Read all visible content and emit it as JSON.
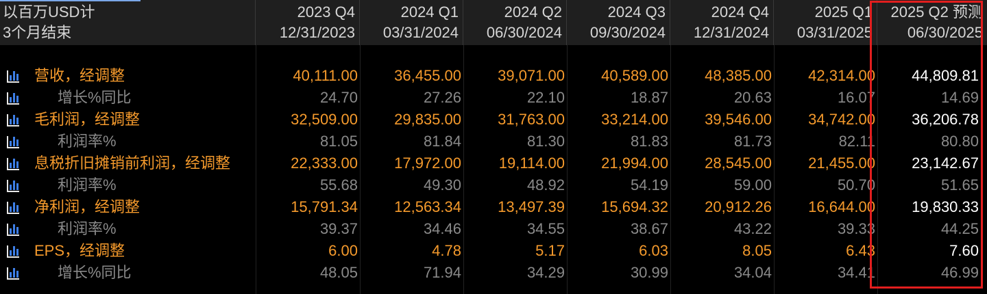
{
  "header": {
    "label_line1": "以百万USD计",
    "label_line2": "3个月结束",
    "periods": [
      {
        "quarter": "2023 Q4",
        "date": "12/31/2023"
      },
      {
        "quarter": "2024 Q1",
        "date": "03/31/2024"
      },
      {
        "quarter": "2024 Q2",
        "date": "06/30/2024"
      },
      {
        "quarter": "2024 Q3",
        "date": "09/30/2024"
      },
      {
        "quarter": "2024 Q4",
        "date": "12/31/2024"
      },
      {
        "quarter": "2025 Q1",
        "date": "03/31/2025"
      },
      {
        "quarter": "2025 Q2 预测",
        "date": "06/30/2025"
      }
    ]
  },
  "rows": [
    {
      "label": "营收，经调整",
      "type": "main",
      "icon": "chart-icon",
      "values": [
        "40,111.00",
        "36,455.00",
        "39,071.00",
        "40,589.00",
        "48,385.00",
        "42,314.00",
        "44,809.81"
      ]
    },
    {
      "label": "增长%同比",
      "type": "sub",
      "icon": "chart-icon",
      "values": [
        "24.70",
        "27.26",
        "22.10",
        "18.87",
        "20.63",
        "16.07",
        "14.69"
      ]
    },
    {
      "label": "毛利润，经调整",
      "type": "main",
      "icon": "chart-icon",
      "values": [
        "32,509.00",
        "29,835.00",
        "31,763.00",
        "33,214.00",
        "39,546.00",
        "34,742.00",
        "36,206.78"
      ]
    },
    {
      "label": "利润率%",
      "type": "sub",
      "icon": "chart-icon",
      "values": [
        "81.05",
        "81.84",
        "81.30",
        "81.83",
        "81.73",
        "82.11",
        "80.80"
      ]
    },
    {
      "label": "息税折旧摊销前利润，经调整",
      "type": "main",
      "icon": "chart-icon",
      "values": [
        "22,333.00",
        "17,972.00",
        "19,114.00",
        "21,994.00",
        "28,545.00",
        "21,455.00",
        "23,142.67"
      ]
    },
    {
      "label": "利润率%",
      "type": "sub",
      "icon": "chart-icon",
      "values": [
        "55.68",
        "49.30",
        "48.92",
        "54.19",
        "59.00",
        "50.70",
        "51.65"
      ]
    },
    {
      "label": "净利润，经调整",
      "type": "main",
      "icon": "chart-icon",
      "values": [
        "15,791.34",
        "12,563.34",
        "13,497.39",
        "15,694.32",
        "20,912.26",
        "16,644.00",
        "19,830.33"
      ]
    },
    {
      "label": "利润率%",
      "type": "sub",
      "icon": "chart-icon",
      "values": [
        "39.37",
        "34.46",
        "34.55",
        "38.67",
        "43.22",
        "39.33",
        "44.25"
      ]
    },
    {
      "label": "EPS，经调整",
      "type": "main",
      "icon": "chart-icon",
      "values": [
        "6.00",
        "4.78",
        "5.17",
        "6.03",
        "8.05",
        "6.43",
        "7.60"
      ]
    },
    {
      "label": "增长%同比",
      "type": "sub",
      "icon": "chart-icon",
      "values": [
        "48.05",
        "71.94",
        "34.29",
        "30.99",
        "34.04",
        "34.41",
        "46.99"
      ]
    }
  ],
  "colors": {
    "main_text": "#f59a2c",
    "sub_text": "#8a8a8a",
    "forecast_main_text": "#ffffff",
    "highlight_border": "#e21e1e",
    "icon_bar": "#3d7ee6"
  }
}
